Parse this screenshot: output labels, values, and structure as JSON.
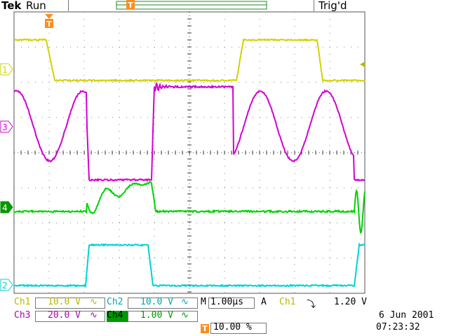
{
  "header": {
    "brand": "Tek",
    "run_state": "Run",
    "trigger_state": "Trig'd"
  },
  "trigger_marker": "T",
  "channels": [
    {
      "id": 1,
      "label": "Ch1",
      "scale": "10.0 V",
      "coupling_symbol": "∿",
      "color": "#d2d200",
      "marker": "1"
    },
    {
      "id": 2,
      "label": "Ch2",
      "scale": "10.0 V",
      "coupling_symbol": "∿",
      "color": "#00d2d2",
      "marker": "2"
    },
    {
      "id": 3,
      "label": "Ch3",
      "scale": "20.0 V",
      "coupling_symbol": "∿",
      "color": "#d200d2",
      "marker": "3"
    },
    {
      "id": 4,
      "label": "Ch4",
      "scale": "1.00 V",
      "coupling_symbol": "∿",
      "color": "#00d200",
      "marker": "4"
    }
  ],
  "timebase": {
    "label": "M",
    "value": "1.00µs"
  },
  "trigger": {
    "mode": "A",
    "source": "Ch1",
    "slope_symbol": "⤵",
    "level": "1.20 V"
  },
  "trigger_position": {
    "marker": "T",
    "value": "10.00 %"
  },
  "date": "6 Jun  2001",
  "time": "07:23:32",
  "icon_names": [
    "trigger-position-marker-icon",
    "trigger-level-arrow-icon",
    "falling-slope-icon"
  ]
}
